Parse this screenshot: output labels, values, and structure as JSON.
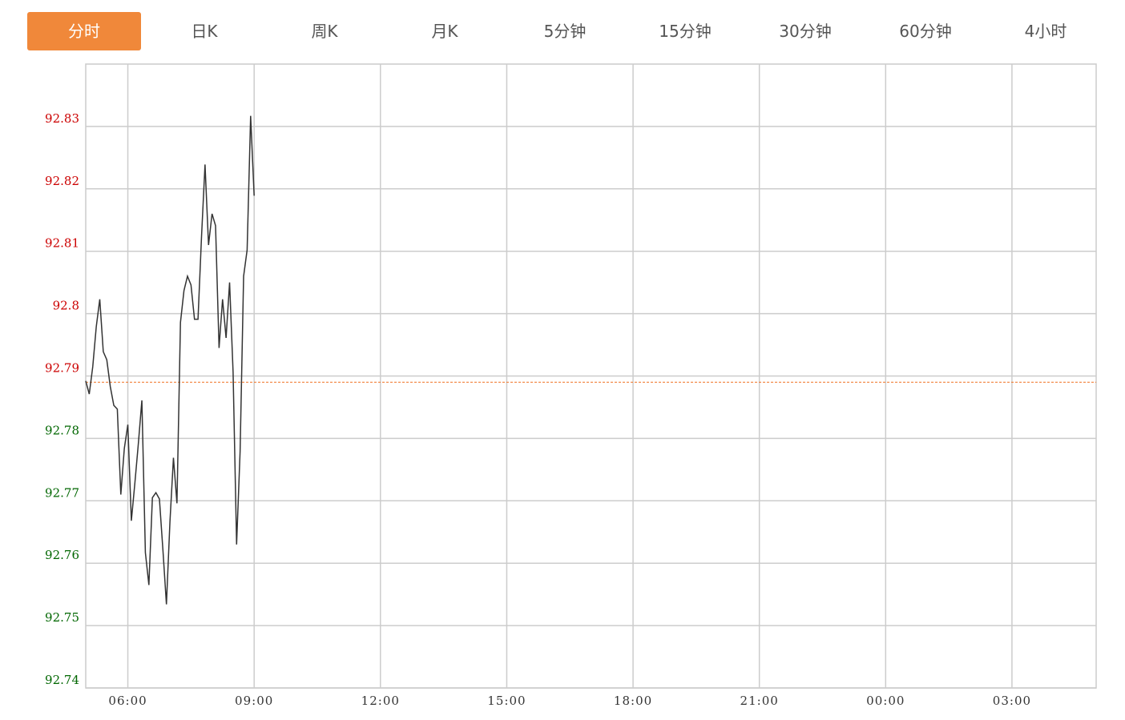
{
  "tabs": [
    {
      "label": "分时",
      "active": true
    },
    {
      "label": "日K",
      "active": false
    },
    {
      "label": "周K",
      "active": false
    },
    {
      "label": "月K",
      "active": false
    },
    {
      "label": "5分钟",
      "active": false
    },
    {
      "label": "15分钟",
      "active": false
    },
    {
      "label": "30分钟",
      "active": false
    },
    {
      "label": "60分钟",
      "active": false
    },
    {
      "label": "4小时",
      "active": false
    }
  ],
  "chart_data": {
    "type": "line",
    "x": [
      0,
      5,
      10,
      15,
      20,
      25,
      30,
      35,
      40,
      45,
      50,
      55,
      60,
      65,
      70,
      75,
      80,
      85,
      90,
      95,
      100,
      105,
      110,
      115,
      120,
      125,
      130,
      135,
      140,
      145,
      150,
      155,
      160,
      165,
      170,
      175,
      180,
      185,
      190,
      195,
      200,
      205,
      210,
      215,
      220,
      225,
      230,
      235,
      240
    ],
    "series": [
      {
        "color": "#333333",
        "values": [
          92.7892,
          92.7871,
          92.7915,
          92.7979,
          92.8023,
          92.7939,
          92.7926,
          92.7883,
          92.7853,
          92.7847,
          92.771,
          92.7784,
          92.7822,
          92.7668,
          92.7728,
          92.7792,
          92.7861,
          92.7617,
          92.7565,
          92.7705,
          92.7713,
          92.7703,
          92.7621,
          92.7534,
          92.7666,
          92.7769,
          92.7696,
          92.7986,
          92.8037,
          92.806,
          92.8046,
          92.7991,
          92.7991,
          92.8123,
          92.8239,
          92.811,
          92.816,
          92.8141,
          92.7945,
          92.8023,
          92.7961,
          92.805,
          92.7906,
          92.763,
          92.7779,
          92.806,
          92.8102,
          92.8317,
          92.8189
        ]
      }
    ],
    "xlim": [
      0,
      1440
    ],
    "xticks": [
      {
        "value": 60,
        "label": "06:00"
      },
      {
        "value": 240,
        "label": "09:00"
      },
      {
        "value": 420,
        "label": "12:00"
      },
      {
        "value": 600,
        "label": "15:00"
      },
      {
        "value": 780,
        "label": "18:00"
      },
      {
        "value": 960,
        "label": "21:00"
      },
      {
        "value": 1140,
        "label": "00:00"
      },
      {
        "value": 1320,
        "label": "03:00"
      }
    ],
    "ylim": [
      92.74,
      92.84
    ],
    "yticks": [
      92.74,
      92.75,
      92.76,
      92.77,
      92.78,
      92.79,
      92.8,
      92.81,
      92.82,
      92.83
    ],
    "reference_line": {
      "value": 92.789,
      "color": "#f07020"
    },
    "up_color": "#cc0000",
    "down_color": "#006600",
    "grid": true
  }
}
